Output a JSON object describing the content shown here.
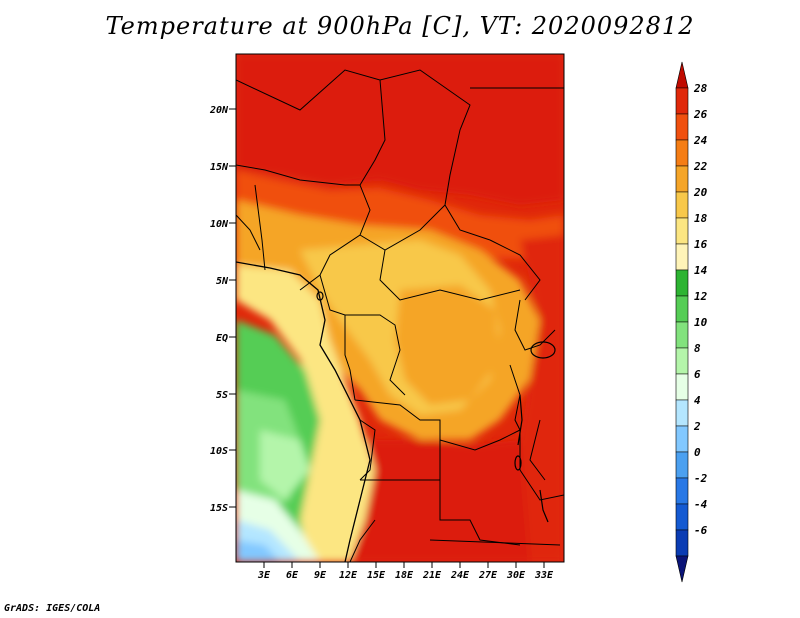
{
  "title": "Temperature at 900hPa [C], VT: 2020092812",
  "credit": "GrADS: IGES/COLA",
  "map": {
    "lat_labels": [
      "20N",
      "15N",
      "10N",
      "5N",
      "EQ",
      "5S",
      "10S",
      "15S"
    ],
    "lon_labels": [
      "3E",
      "6E",
      "9E",
      "12E",
      "15E",
      "18E",
      "21E",
      "24E",
      "27E",
      "30E",
      "33E"
    ]
  },
  "colorbar": {
    "labels": [
      "28",
      "26",
      "24",
      "22",
      "20",
      "18",
      "16",
      "14",
      "12",
      "10",
      "8",
      "6",
      "4",
      "2",
      "0",
      "-2",
      "-4",
      "-6"
    ],
    "colors": [
      "#c00a00",
      "#e0280a",
      "#f0500f",
      "#f57d14",
      "#f5a528",
      "#f8c84a",
      "#fce682",
      "#fff4b8",
      "#2db432",
      "#55cd55",
      "#82e27d",
      "#b4f5aa",
      "#e6ffe6",
      "#b4e6ff",
      "#82c8ff",
      "#4ba0f0",
      "#2878e6",
      "#145ad2",
      "#0a3cb4",
      "#0a1478"
    ]
  }
}
